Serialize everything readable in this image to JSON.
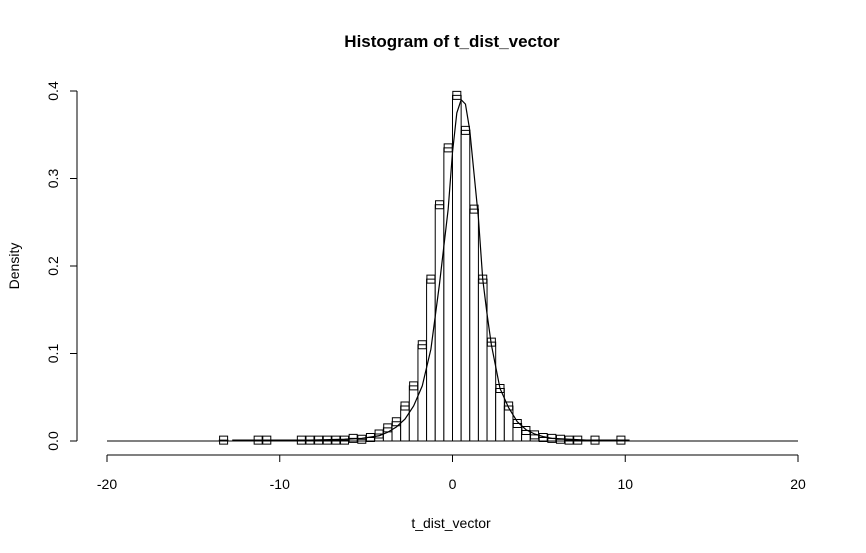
{
  "chart_data": {
    "type": "bar",
    "title": "Histogram of t_dist_vector",
    "xlabel": "t_dist_vector",
    "ylabel": "Density",
    "xlim": [
      -20,
      20
    ],
    "ylim": [
      0,
      0.4
    ],
    "x_ticks": [
      "-20",
      "-10",
      "0",
      "10",
      "20"
    ],
    "x_tick_values": [
      -20,
      -10,
      0,
      10,
      20
    ],
    "y_ticks": [
      "0.0",
      "0.1",
      "0.2",
      "0.3",
      "0.4"
    ],
    "y_tick_values": [
      0,
      0.1,
      0.2,
      0.3,
      0.4
    ],
    "bin_width": 0.5,
    "bins": [
      {
        "x0": -12.5,
        "density": 0.001
      },
      {
        "x0": -10.5,
        "density": 0.001
      },
      {
        "x0": -10.0,
        "density": 0.001
      },
      {
        "x0": -8.0,
        "density": 0.001
      },
      {
        "x0": -7.5,
        "density": 0.001
      },
      {
        "x0": -7.0,
        "density": 0.001
      },
      {
        "x0": -6.5,
        "density": 0.001
      },
      {
        "x0": -6.0,
        "density": 0.001
      },
      {
        "x0": -5.5,
        "density": 0.001
      },
      {
        "x0": -5.0,
        "density": 0.003
      },
      {
        "x0": -4.5,
        "density": 0.002
      },
      {
        "x0": -4.0,
        "density": 0.004
      },
      {
        "x0": -3.5,
        "density": 0.008
      },
      {
        "x0": -3.0,
        "density": 0.015
      },
      {
        "x0": -2.5,
        "density": 0.022
      },
      {
        "x0": -2.0,
        "density": 0.04
      },
      {
        "x0": -1.5,
        "density": 0.063
      },
      {
        "x0": -1.0,
        "density": 0.11
      },
      {
        "x0": -0.5,
        "density": 0.185
      },
      {
        "x0": 0.0,
        "density": 0.27
      },
      {
        "x0": 0.5,
        "density": 0.335
      },
      {
        "x0": 1.0,
        "density": 0.395
      },
      {
        "x0": 1.5,
        "density": 0.355
      },
      {
        "x0": 2.0,
        "density": 0.265
      },
      {
        "x0": 2.5,
        "density": 0.185
      },
      {
        "x0": 3.0,
        "density": 0.113
      },
      {
        "x0": 3.5,
        "density": 0.06
      },
      {
        "x0": 4.0,
        "density": 0.04
      },
      {
        "x0": 4.5,
        "density": 0.02
      },
      {
        "x0": 5.0,
        "density": 0.012
      },
      {
        "x0": 5.5,
        "density": 0.007
      },
      {
        "x0": 6.0,
        "density": 0.004
      },
      {
        "x0": 6.5,
        "density": 0.003
      },
      {
        "x0": 7.0,
        "density": 0.002
      },
      {
        "x0": 7.5,
        "density": 0.001
      },
      {
        "x0": 8.0,
        "density": 0.001
      },
      {
        "x0": 9.0,
        "density": 0.001
      },
      {
        "x0": 10.5,
        "density": 0.001
      }
    ],
    "curve": {
      "x": [
        -12.5,
        -10,
        -8,
        -6,
        -5,
        -4,
        -3.5,
        -3,
        -2.5,
        -2,
        -1.5,
        -1,
        -0.5,
        0,
        0.25,
        0.5,
        0.75,
        1.0,
        1.25,
        1.5,
        1.75,
        2.0,
        2.25,
        2.5,
        3,
        3.5,
        4,
        4.5,
        5,
        5.5,
        6,
        7,
        8,
        10.5
      ],
      "y": [
        0.001,
        0.001,
        0.001,
        0.002,
        0.003,
        0.006,
        0.01,
        0.016,
        0.025,
        0.04,
        0.063,
        0.105,
        0.18,
        0.265,
        0.33,
        0.375,
        0.39,
        0.385,
        0.355,
        0.305,
        0.255,
        0.185,
        0.145,
        0.11,
        0.06,
        0.038,
        0.022,
        0.013,
        0.008,
        0.005,
        0.003,
        0.002,
        0.001,
        0.001
      ]
    },
    "grid": false,
    "legend": "none"
  }
}
